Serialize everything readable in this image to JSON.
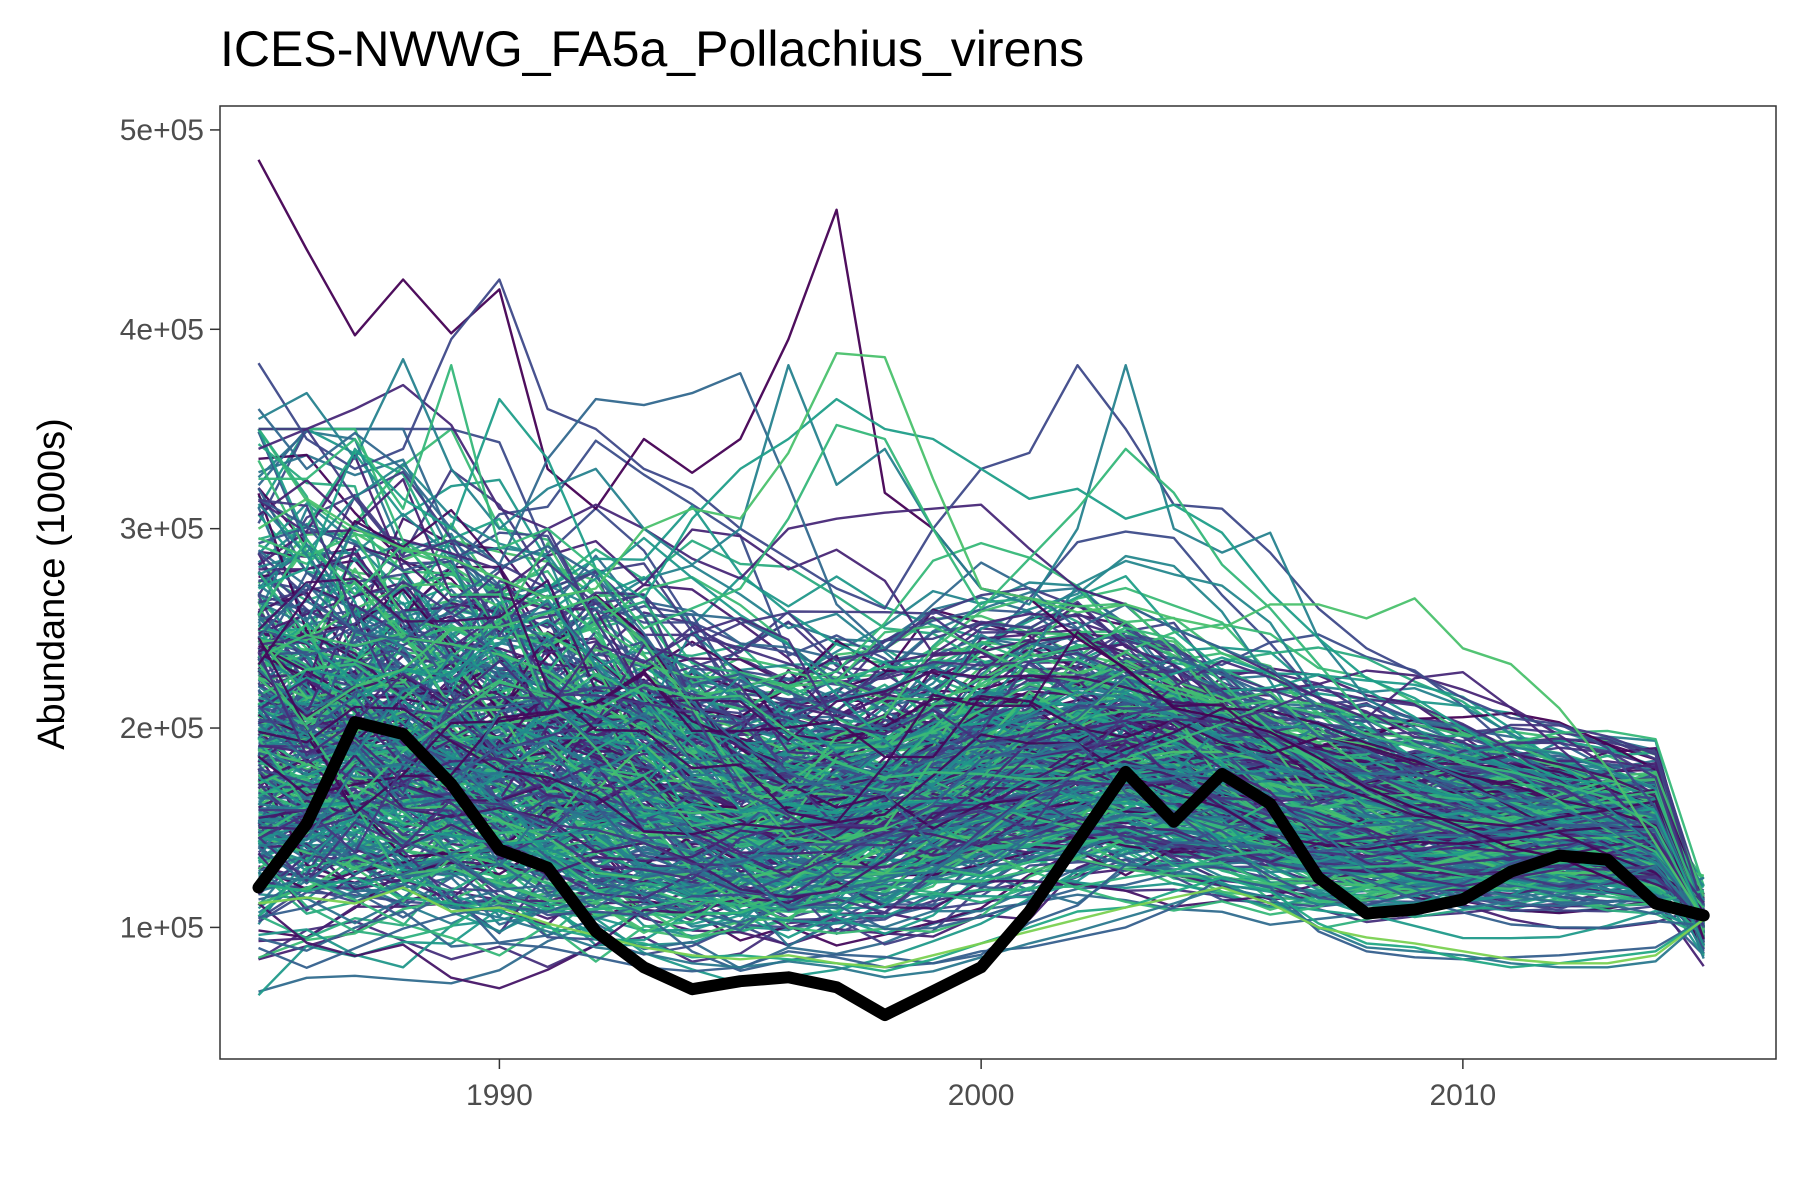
{
  "chart_data": {
    "type": "line",
    "title": "ICES-NWWG_FA5a_Pollachius_virens",
    "xlabel": "",
    "ylabel": "Abundance (1000s)",
    "xlim": [
      1984.2,
      2016.5
    ],
    "ylim": [
      34000,
      512000
    ],
    "x_ticks": [
      1990,
      2000,
      2010
    ],
    "x_tick_labels": [
      "1990",
      "2000",
      "2010"
    ],
    "y_ticks": [
      100000,
      200000,
      300000,
      400000,
      500000
    ],
    "y_tick_labels": [
      "1e+05",
      "2e+05",
      "3e+05",
      "4e+05",
      "5e+05"
    ],
    "grid": false,
    "legend": "none",
    "x": [
      1985,
      1986,
      1987,
      1988,
      1989,
      1990,
      1991,
      1992,
      1993,
      1994,
      1995,
      1996,
      1997,
      1998,
      1999,
      2000,
      2001,
      2002,
      2003,
      2004,
      2005,
      2006,
      2007,
      2008,
      2009,
      2010,
      2011,
      2012,
      2013,
      2014,
      2015
    ],
    "observed": {
      "color": "#000000",
      "values": [
        120000,
        152000,
        203000,
        197000,
        172000,
        139000,
        130000,
        98000,
        80000,
        69000,
        73000,
        75000,
        70000,
        56000,
        68000,
        80000,
        108000,
        143000,
        178000,
        153000,
        177000,
        162000,
        125000,
        107000,
        109000,
        114000,
        128000,
        136000,
        134000,
        112000,
        106000
      ]
    },
    "simulated_series": {
      "count": 400,
      "color_scale": "viridis",
      "color_range": [
        "#440154",
        "#4ac16d"
      ],
      "end_value": 104000,
      "samples": [
        {
          "color": "#440154",
          "values": [
            485000,
            440000,
            397000,
            425000,
            398000,
            420000,
            330000,
            310000,
            345000,
            328000,
            345000,
            395000,
            460000,
            318000,
            300000,
            270000,
            265000,
            245000,
            230000,
            210000,
            205000,
            198000,
            185000,
            170000,
            160000,
            150000,
            140000,
            135000,
            125000,
            115000,
            104000
          ]
        },
        {
          "color": "#482878",
          "values": [
            340000,
            350000,
            360000,
            372000,
            352000,
            310000,
            300000,
            312000,
            300000,
            285000,
            275000,
            300000,
            305000,
            308000,
            310000,
            312000,
            290000,
            270000,
            262000,
            250000,
            240000,
            228000,
            215000,
            205000,
            225000,
            228000,
            210000,
            190000,
            170000,
            145000,
            104000
          ]
        },
        {
          "color": "#3e4989",
          "values": [
            383000,
            345000,
            330000,
            340000,
            395000,
            425000,
            360000,
            350000,
            330000,
            320000,
            300000,
            285000,
            270000,
            260000,
            300000,
            330000,
            338000,
            382000,
            350000,
            312000,
            310000,
            288000,
            260000,
            240000,
            228000,
            215000,
            205000,
            202000,
            190000,
            160000,
            104000
          ]
        },
        {
          "color": "#31688e",
          "values": [
            360000,
            330000,
            348000,
            330000,
            300000,
            282000,
            335000,
            365000,
            362000,
            368000,
            378000,
            322000,
            262000,
            240000,
            262000,
            283000,
            270000,
            250000,
            262000,
            250000,
            240000,
            230000,
            210000,
            195000,
            185000,
            175000,
            168000,
            160000,
            150000,
            135000,
            104000
          ]
        },
        {
          "color": "#26828e",
          "values": [
            355000,
            368000,
            335000,
            385000,
            330000,
            300000,
            320000,
            330000,
            300000,
            282000,
            300000,
            382000,
            322000,
            340000,
            300000,
            270000,
            262000,
            300000,
            382000,
            300000,
            288000,
            298000,
            245000,
            215000,
            200000,
            185000,
            180000,
            175000,
            160000,
            140000,
            104000
          ]
        },
        {
          "color": "#1f9e89",
          "values": [
            270000,
            280000,
            340000,
            315000,
            300000,
            365000,
            335000,
            280000,
            265000,
            305000,
            330000,
            345000,
            365000,
            350000,
            345000,
            330000,
            315000,
            320000,
            305000,
            312000,
            298000,
            268000,
            245000,
            225000,
            215000,
            200000,
            185000,
            175000,
            172000,
            158000,
            104000
          ]
        },
        {
          "color": "#35b779",
          "values": [
            325000,
            325000,
            345000,
            310000,
            382000,
            290000,
            300000,
            280000,
            250000,
            260000,
            270000,
            305000,
            352000,
            345000,
            300000,
            260000,
            285000,
            310000,
            340000,
            318000,
            282000,
            260000,
            232000,
            205000,
            192000,
            182000,
            178000,
            172000,
            165000,
            150000,
            104000
          ]
        },
        {
          "color": "#4ac16d",
          "values": [
            300000,
            315000,
            300000,
            290000,
            285000,
            275000,
            265000,
            270000,
            300000,
            310000,
            305000,
            338000,
            388000,
            386000,
            325000,
            270000,
            265000,
            258000,
            262000,
            255000,
            250000,
            262000,
            262000,
            255000,
            265000,
            240000,
            232000,
            210000,
            180000,
            142000,
            104000
          ]
        },
        {
          "color": "#355f8d",
          "values": [
            105000,
            110000,
            118000,
            105000,
            118000,
            92000,
            90000,
            85000,
            80000,
            78000,
            80000,
            88000,
            85000,
            80000,
            82000,
            88000,
            90000,
            95000,
            100000,
            110000,
            125000,
            120000,
            98000,
            88000,
            85000,
            84000,
            85000,
            86000,
            88000,
            90000,
            104000
          ]
        },
        {
          "color": "#2a788e",
          "values": [
            118000,
            125000,
            115000,
            122000,
            110000,
            105000,
            98000,
            90000,
            87000,
            82000,
            80000,
            83000,
            80000,
            75000,
            78000,
            85000,
            92000,
            98000,
            105000,
            112000,
            120000,
            115000,
            100000,
            90000,
            88000,
            86000,
            82000,
            80000,
            80000,
            83000,
            104000
          ]
        },
        {
          "color": "#22a884",
          "values": [
            122000,
            118000,
            125000,
            115000,
            112000,
            108000,
            100000,
            95000,
            92000,
            85000,
            86000,
            84000,
            82000,
            78000,
            84000,
            92000,
            100000,
            108000,
            110000,
            118000,
            125000,
            118000,
            102000,
            92000,
            90000,
            84000,
            80000,
            82000,
            85000,
            88000,
            104000
          ]
        },
        {
          "color": "#7ad151",
          "values": [
            112000,
            115000,
            112000,
            120000,
            108000,
            110000,
            102000,
            96000,
            90000,
            86000,
            84000,
            86000,
            82000,
            80000,
            86000,
            92000,
            98000,
            104000,
            110000,
            115000,
            120000,
            112000,
            100000,
            95000,
            92000,
            88000,
            84000,
            82000,
            82000,
            86000,
            104000
          ]
        }
      ]
    }
  }
}
